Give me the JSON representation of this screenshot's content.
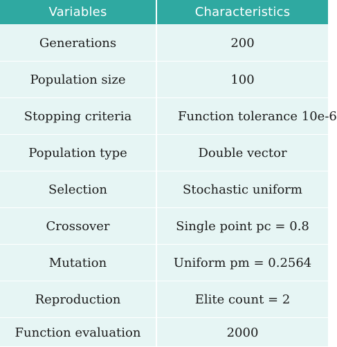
{
  "table": {
    "headers": [
      "Variables",
      "Characteristics"
    ],
    "rows": [
      {
        "variable": "Generations",
        "value": "200"
      },
      {
        "variable": "Population size",
        "value": "100"
      },
      {
        "variable": "Stopping criteria",
        "value": "Function tolerance 10e-6"
      },
      {
        "variable": "Population type",
        "value": "Double vector"
      },
      {
        "variable": "Selection",
        "value": "Stochastic uniform"
      },
      {
        "variable": "Crossover",
        "value": "Single point pc = 0.8"
      },
      {
        "variable": "Mutation",
        "value": "Uniform pm = 0.2564"
      },
      {
        "variable": "Reproduction",
        "value": "Elite count = 2"
      },
      {
        "variable": "Function evaluation",
        "value": "2000"
      }
    ]
  },
  "colors": {
    "header_bg": "#2fa9a1",
    "row_bg": "#e6f5f4"
  }
}
